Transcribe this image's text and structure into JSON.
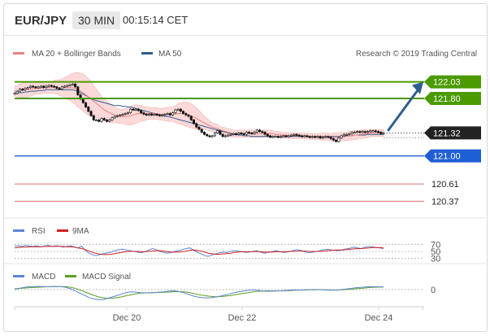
{
  "header": {
    "pair": "EUR/JPY",
    "timeframe": "30 MIN",
    "time": "00:15:14 CET"
  },
  "legend": {
    "ma_bb": "MA 20 + Bollinger Bands",
    "ma50": "MA 50",
    "credit": "Research © 2019 Trading Central",
    "rsi": "RSI",
    "rsi_ma": "9MA",
    "macd": "MACD",
    "macd_signal": "MACD Signal"
  },
  "colors": {
    "resistance": "#4a9a00",
    "support": "#1f5fd6",
    "target": "#e07070",
    "current": "#222222",
    "ma20": "#e98080",
    "ma50": "#2f5d8f",
    "bollinger_fill": "#fbd9d9",
    "candle_up": "#555555",
    "candle_down": "#111111",
    "arrow": "#2f5d8f",
    "rsi": "#5b86d6",
    "rsi_ma": "#d12020",
    "macd": "#5b86d6",
    "macd_signal": "#5aa020"
  },
  "chart_data": {
    "type": "candlestick",
    "x_ticks": [
      "Dec 20",
      "Dec 22",
      "Dec 24"
    ],
    "ylim": [
      120.25,
      122.15
    ],
    "close": [
      121.87,
      121.9,
      121.93,
      121.92,
      121.94,
      121.95,
      121.97,
      121.96,
      121.95,
      121.96,
      121.97,
      121.95,
      121.97,
      121.98,
      121.97,
      121.96,
      121.94,
      121.93,
      121.96,
      121.97,
      121.98,
      121.99,
      122.0,
      121.96,
      121.85,
      121.79,
      121.74,
      121.68,
      121.62,
      121.56,
      121.5,
      121.5,
      121.48,
      121.52,
      121.5,
      121.48,
      121.5,
      121.53,
      121.55,
      121.56,
      121.57,
      121.58,
      121.59,
      121.6,
      121.65,
      121.64,
      121.65,
      121.63,
      121.6,
      121.58,
      121.57,
      121.58,
      121.57,
      121.58,
      121.57,
      121.56,
      121.57,
      121.58,
      121.59,
      121.57,
      121.6,
      121.64,
      121.65,
      121.62,
      121.59,
      121.57,
      121.55,
      121.5,
      121.45,
      121.4,
      121.37,
      121.33,
      121.3,
      121.28,
      121.27,
      121.28,
      121.32,
      121.35,
      121.3,
      121.27,
      121.28,
      121.29,
      121.3,
      121.31,
      121.3,
      121.32,
      121.31,
      121.3,
      121.33,
      121.32,
      121.31,
      121.33,
      121.36,
      121.34,
      121.33,
      121.3,
      121.28,
      121.26,
      121.27,
      121.27,
      121.26,
      121.27,
      121.28,
      121.27,
      121.28,
      121.29,
      121.3,
      121.29,
      121.28,
      121.27,
      121.28,
      121.27,
      121.26,
      121.27,
      121.26,
      121.27,
      121.25,
      121.26,
      121.27,
      121.26,
      121.24,
      121.22,
      121.2,
      121.25,
      121.28,
      121.3,
      121.3,
      121.31,
      121.33,
      121.33,
      121.34,
      121.33,
      121.34,
      121.33,
      121.34,
      121.35,
      121.35,
      121.34,
      121.33,
      121.31,
      121.32
    ],
    "ma20": [
      121.9,
      121.9,
      121.91,
      121.91,
      121.92,
      121.92,
      121.93,
      121.93,
      121.94,
      121.94,
      121.94,
      121.95,
      121.95,
      121.95,
      121.95,
      121.96,
      121.96,
      121.95,
      121.95,
      121.95,
      121.95,
      121.95,
      121.95,
      121.94,
      121.92,
      121.9,
      121.88,
      121.85,
      121.82,
      121.79,
      121.76,
      121.73,
      121.7,
      121.67,
      121.64,
      121.62,
      121.6,
      121.58,
      121.57,
      121.56,
      121.55,
      121.55,
      121.55,
      121.55,
      121.56,
      121.57,
      121.58,
      121.59,
      121.59,
      121.59,
      121.59,
      121.59,
      121.59,
      121.59,
      121.59,
      121.58,
      121.58,
      121.58,
      121.58,
      121.58,
      121.58,
      121.58,
      121.59,
      121.59,
      121.59,
      121.58,
      121.57,
      121.56,
      121.54,
      121.52,
      121.5,
      121.48,
      121.46,
      121.44,
      121.42,
      121.4,
      121.39,
      121.38,
      121.36,
      121.35,
      121.34,
      121.33,
      121.32,
      121.31,
      121.31,
      121.31,
      121.31,
      121.31,
      121.31,
      121.31,
      121.31,
      121.31,
      121.31,
      121.31,
      121.31,
      121.31,
      121.31,
      121.31,
      121.31,
      121.3,
      121.3,
      121.29,
      121.29,
      121.29,
      121.28,
      121.28,
      121.28,
      121.28,
      121.28,
      121.28,
      121.28,
      121.28,
      121.27,
      121.27,
      121.27,
      121.27,
      121.27,
      121.27,
      121.27,
      121.27,
      121.26,
      121.26,
      121.26,
      121.26,
      121.27,
      121.27,
      121.27,
      121.28,
      121.28,
      121.29,
      121.29,
      121.3,
      121.3,
      121.31,
      121.31,
      121.32,
      121.32,
      121.32,
      121.32,
      121.32,
      121.32
    ],
    "ma50": [
      121.87,
      121.87,
      121.88,
      121.88,
      121.89,
      121.89,
      121.9,
      121.9,
      121.9,
      121.91,
      121.91,
      121.91,
      121.92,
      121.92,
      121.92,
      121.92,
      121.92,
      121.92,
      121.92,
      121.92,
      121.92,
      121.92,
      121.92,
      121.91,
      121.9,
      121.88,
      121.86,
      121.84,
      121.82,
      121.8,
      121.78,
      121.77,
      121.76,
      121.75,
      121.74,
      121.73,
      121.72,
      121.71,
      121.7,
      121.7,
      121.7,
      121.69,
      121.69,
      121.68,
      121.68,
      121.67,
      121.66,
      121.65,
      121.64,
      121.63,
      121.62,
      121.61,
      121.6,
      121.59,
      121.58,
      121.57,
      121.56,
      121.55,
      121.55,
      121.54,
      121.53,
      121.52,
      121.51,
      121.5,
      121.49,
      121.48,
      121.47,
      121.46,
      121.45,
      121.44,
      121.43,
      121.42,
      121.41,
      121.4,
      121.39,
      121.38,
      121.37,
      121.36,
      121.35,
      121.34,
      121.33,
      121.32,
      121.31,
      121.3,
      121.3,
      121.29,
      121.29,
      121.28,
      121.28,
      121.28,
      121.27,
      121.27,
      121.27,
      121.27,
      121.27,
      121.27,
      121.27,
      121.27,
      121.27,
      121.27,
      121.27,
      121.27,
      121.27,
      121.27,
      121.27,
      121.27,
      121.27,
      121.27,
      121.27,
      121.27,
      121.27,
      121.27,
      121.27,
      121.27,
      121.27,
      121.27,
      121.27,
      121.27,
      121.27,
      121.27,
      121.27,
      121.27,
      121.27,
      121.27,
      121.27,
      121.28,
      121.28,
      121.28,
      121.28,
      121.29,
      121.29,
      121.29,
      121.29,
      121.29,
      121.3,
      121.3,
      121.3,
      121.3,
      121.3,
      121.3,
      121.3
    ],
    "bb_width": [
      0.07,
      0.08,
      0.09,
      0.1,
      0.1,
      0.1,
      0.1,
      0.09,
      0.08,
      0.08,
      0.08,
      0.08,
      0.08,
      0.08,
      0.08,
      0.09,
      0.1,
      0.11,
      0.12,
      0.14,
      0.16,
      0.18,
      0.2,
      0.22,
      0.24,
      0.25,
      0.26,
      0.26,
      0.25,
      0.24,
      0.22,
      0.2,
      0.18,
      0.16,
      0.15,
      0.14,
      0.13,
      0.12,
      0.11,
      0.1,
      0.1,
      0.1,
      0.11,
      0.12,
      0.13,
      0.13,
      0.13,
      0.12,
      0.11,
      0.1,
      0.09,
      0.08,
      0.08,
      0.08,
      0.08,
      0.08,
      0.08,
      0.09,
      0.1,
      0.1,
      0.1,
      0.12,
      0.14,
      0.15,
      0.16,
      0.17,
      0.17,
      0.17,
      0.16,
      0.15,
      0.13,
      0.11,
      0.09,
      0.08,
      0.07,
      0.06,
      0.06,
      0.06,
      0.05,
      0.05,
      0.05,
      0.05,
      0.05,
      0.05,
      0.05,
      0.05,
      0.05,
      0.05,
      0.05,
      0.05,
      0.05,
      0.05,
      0.05,
      0.05,
      0.05,
      0.05,
      0.05,
      0.05,
      0.04,
      0.04,
      0.04,
      0.04,
      0.04,
      0.04,
      0.04,
      0.04,
      0.04,
      0.04,
      0.04,
      0.04,
      0.04,
      0.04,
      0.04,
      0.04,
      0.04,
      0.04,
      0.05,
      0.05,
      0.05,
      0.05,
      0.05,
      0.06,
      0.06,
      0.06,
      0.06,
      0.06,
      0.06,
      0.06,
      0.06,
      0.06,
      0.06,
      0.06,
      0.06,
      0.06,
      0.06,
      0.05,
      0.05,
      0.05,
      0.05,
      0.05,
      0.05,
      0.05,
      0.05
    ],
    "levels": [
      {
        "value": 122.03,
        "label": "122.03",
        "kind": "resistance"
      },
      {
        "value": 121.8,
        "label": "121.80",
        "kind": "resistance"
      },
      {
        "value": 121.32,
        "label": "121.32",
        "kind": "current"
      },
      {
        "value": 121.0,
        "label": "121.00",
        "kind": "support"
      },
      {
        "value": 120.61,
        "label": "120.61",
        "kind": "target"
      },
      {
        "value": 120.37,
        "label": "120.37",
        "kind": "target"
      }
    ],
    "rsi_ticks": [
      "70",
      "50",
      "30"
    ],
    "rsi_ylim": [
      20,
      80
    ],
    "rsi": [
      65,
      66,
      64,
      67,
      65,
      64,
      66,
      63,
      65,
      67,
      64,
      66,
      65,
      62,
      64,
      66,
      63,
      60,
      65,
      52,
      45,
      40,
      38,
      42,
      44,
      46,
      48,
      52,
      55,
      56,
      54,
      52,
      50,
      48,
      46,
      49,
      54,
      58,
      55,
      50,
      47,
      45,
      47,
      50,
      52,
      55,
      58,
      60,
      54,
      48,
      43,
      38,
      36,
      40,
      43,
      46,
      48,
      47,
      50,
      52,
      51,
      49,
      47,
      48,
      50,
      52,
      48,
      45,
      47,
      49,
      52,
      50,
      47,
      48,
      50,
      53,
      55,
      52,
      48,
      46,
      48,
      50,
      52,
      55,
      56,
      54,
      53,
      52,
      55,
      57,
      59,
      62,
      60,
      58,
      62,
      64,
      63,
      61,
      60,
      58
    ],
    "rsi_ma": [
      60,
      61,
      62,
      62,
      63,
      63,
      63,
      63,
      64,
      64,
      64,
      64,
      64,
      64,
      63,
      63,
      62,
      60,
      58,
      55,
      51,
      47,
      44,
      42,
      41,
      41,
      42,
      44,
      46,
      48,
      49,
      50,
      50,
      50,
      49,
      49,
      50,
      51,
      52,
      52,
      51,
      49,
      48,
      48,
      48,
      49,
      51,
      53,
      54,
      53,
      51,
      48,
      45,
      43,
      42,
      42,
      43,
      44,
      45,
      47,
      48,
      49,
      49,
      49,
      49,
      50,
      49,
      48,
      48,
      48,
      49,
      49,
      49,
      49,
      50,
      50,
      51,
      51,
      51,
      50,
      50,
      50,
      50,
      51,
      52,
      53,
      54,
      54,
      54,
      55,
      56,
      57,
      58,
      58,
      59,
      60,
      61,
      61,
      61,
      60
    ],
    "macd_ticks": [
      "0"
    ],
    "macd_ylim": [
      -0.09,
      0.05
    ],
    "macd": [
      0.0,
      0.008,
      0.015,
      0.019,
      0.021,
      0.022,
      0.021,
      0.02,
      0.021,
      0.022,
      0.02,
      0.015,
      0.005,
      -0.01,
      -0.025,
      -0.04,
      -0.055,
      -0.065,
      -0.07,
      -0.068,
      -0.06,
      -0.05,
      -0.04,
      -0.03,
      -0.02,
      -0.015,
      -0.018,
      -0.021,
      -0.022,
      -0.021,
      -0.02,
      -0.018,
      -0.015,
      -0.01,
      -0.008,
      -0.012,
      -0.02,
      -0.03,
      -0.042,
      -0.05,
      -0.055,
      -0.057,
      -0.056,
      -0.052,
      -0.045,
      -0.038,
      -0.03,
      -0.022,
      -0.015,
      -0.01,
      -0.005,
      -0.002,
      -0.005,
      -0.01,
      -0.012,
      -0.011,
      -0.01,
      -0.008,
      -0.006,
      -0.004,
      -0.002,
      -0.003,
      -0.002,
      -0.001,
      0.0,
      0.0,
      -0.002,
      -0.004,
      -0.004,
      -0.003,
      0.0,
      0.004,
      0.008,
      0.012,
      0.015,
      0.018,
      0.02,
      0.02,
      0.019,
      0.018
    ],
    "macd_signal": [
      0.005,
      0.008,
      0.01,
      0.012,
      0.014,
      0.016,
      0.018,
      0.019,
      0.02,
      0.021,
      0.021,
      0.02,
      0.016,
      0.008,
      -0.003,
      -0.015,
      -0.028,
      -0.04,
      -0.05,
      -0.057,
      -0.06,
      -0.059,
      -0.055,
      -0.049,
      -0.042,
      -0.035,
      -0.029,
      -0.025,
      -0.023,
      -0.022,
      -0.021,
      -0.02,
      -0.019,
      -0.017,
      -0.015,
      -0.014,
      -0.015,
      -0.019,
      -0.025,
      -0.032,
      -0.038,
      -0.043,
      -0.047,
      -0.049,
      -0.048,
      -0.046,
      -0.042,
      -0.037,
      -0.031,
      -0.026,
      -0.021,
      -0.016,
      -0.012,
      -0.01,
      -0.009,
      -0.009,
      -0.009,
      -0.009,
      -0.008,
      -0.007,
      -0.005,
      -0.004,
      -0.003,
      -0.002,
      -0.002,
      -0.001,
      -0.001,
      -0.002,
      -0.002,
      -0.003,
      -0.002,
      0.0,
      0.002,
      0.005,
      0.008,
      0.011,
      0.014,
      0.016,
      0.017,
      0.018
    ]
  }
}
